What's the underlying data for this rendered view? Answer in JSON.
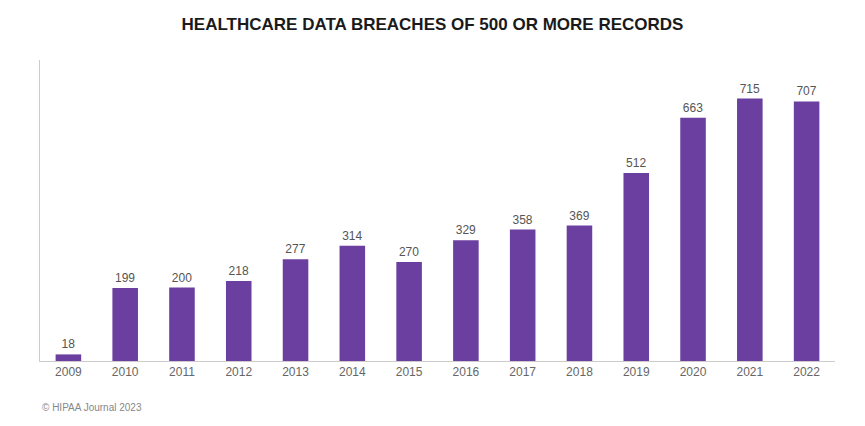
{
  "chart_data": {
    "type": "bar",
    "title": "HEALTHCARE DATA BREACHES OF 500 OR MORE RECORDS",
    "categories": [
      "2009",
      "2010",
      "2011",
      "2012",
      "2013",
      "2014",
      "2015",
      "2016",
      "2017",
      "2018",
      "2019",
      "2020",
      "2021",
      "2022"
    ],
    "values": [
      18,
      199,
      200,
      218,
      277,
      314,
      270,
      329,
      358,
      369,
      512,
      663,
      715,
      707
    ],
    "color": "#6B3FA0",
    "ylim": [
      0,
      820
    ],
    "grid": false,
    "data_labels": true,
    "tick_labels": "x",
    "annotations": [
      "© HIPAA Journal 2023"
    ]
  }
}
